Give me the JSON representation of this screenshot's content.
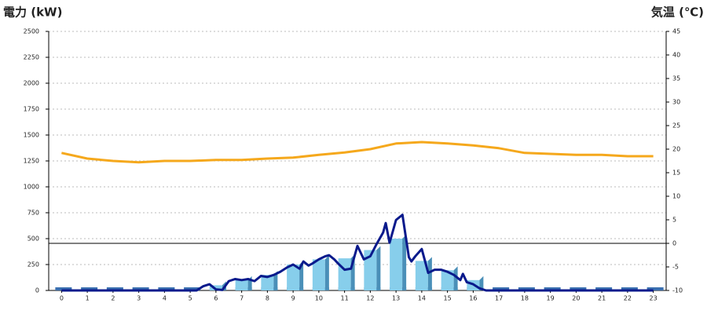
{
  "chart_data": {
    "type": "bar",
    "title_left": "電力 (kW)",
    "title_right": "気温 (℃)",
    "title_left_color": "#1f5fa8",
    "title_right_color": "#e87d1e",
    "categories": [
      0,
      1,
      2,
      3,
      4,
      5,
      6,
      7,
      8,
      9,
      10,
      11,
      12,
      13,
      14,
      15,
      16,
      17,
      18,
      19,
      20,
      21,
      22,
      23
    ],
    "xlim": [
      -0.5,
      23.5
    ],
    "ylim": [
      0,
      2500
    ],
    "yticks": [
      0,
      250,
      500,
      750,
      1000,
      1250,
      1500,
      1750,
      2000,
      2250,
      2500
    ],
    "y2lim": [
      -10,
      45
    ],
    "y2ticks": [
      -10,
      -5,
      0,
      5,
      10,
      15,
      20,
      25,
      30,
      35,
      40,
      45
    ],
    "y2_reference_line": 0,
    "grid": true,
    "series": [
      {
        "type": "bar",
        "color": "#87ceeb",
        "values": [
          0,
          0,
          0,
          0,
          0,
          0,
          50,
          100,
          150,
          250,
          300,
          310,
          390,
          500,
          285,
          195,
          100,
          0,
          0,
          0,
          0,
          0,
          0,
          0
        ]
      },
      {
        "type": "line",
        "color": "#0a1a8c",
        "x": [
          0,
          1,
          2,
          3,
          4,
          5,
          5.25,
          5.5,
          5.75,
          6,
          6.25,
          6.5,
          6.75,
          7,
          7.25,
          7.5,
          7.75,
          8,
          8.25,
          8.5,
          8.75,
          9,
          9.25,
          9.4,
          9.6,
          9.75,
          10,
          10.25,
          10.4,
          10.6,
          10.75,
          11,
          11.25,
          11.5,
          11.75,
          12,
          12.25,
          12.5,
          12.6,
          12.75,
          13,
          13.25,
          13.5,
          13.6,
          13.75,
          14,
          14.25,
          14.5,
          14.75,
          15,
          15.25,
          15.5,
          15.6,
          15.75,
          16,
          16.25,
          16.5,
          17,
          18,
          19,
          20,
          21,
          22,
          23
        ],
        "values": [
          0,
          0,
          0,
          0,
          0,
          0,
          0,
          40,
          60,
          10,
          5,
          90,
          110,
          100,
          110,
          90,
          140,
          130,
          150,
          180,
          220,
          250,
          210,
          280,
          240,
          260,
          300,
          330,
          340,
          300,
          260,
          200,
          210,
          430,
          300,
          330,
          450,
          560,
          650,
          460,
          680,
          730,
          320,
          280,
          330,
          400,
          170,
          200,
          200,
          180,
          150,
          100,
          160,
          80,
          60,
          20,
          0,
          0,
          0,
          0,
          0,
          0,
          0,
          0
        ]
      },
      {
        "type": "line",
        "axis": "y2",
        "color": "#f5a81c",
        "values": [
          19.2,
          18,
          17.5,
          17.2,
          17.5,
          17.5,
          17.7,
          17.7,
          18,
          18.2,
          18.8,
          19.3,
          20,
          21.2,
          21.5,
          21.2,
          20.8,
          20.2,
          19.2,
          19,
          18.8,
          18.8,
          18.5,
          18.5
        ]
      }
    ]
  }
}
